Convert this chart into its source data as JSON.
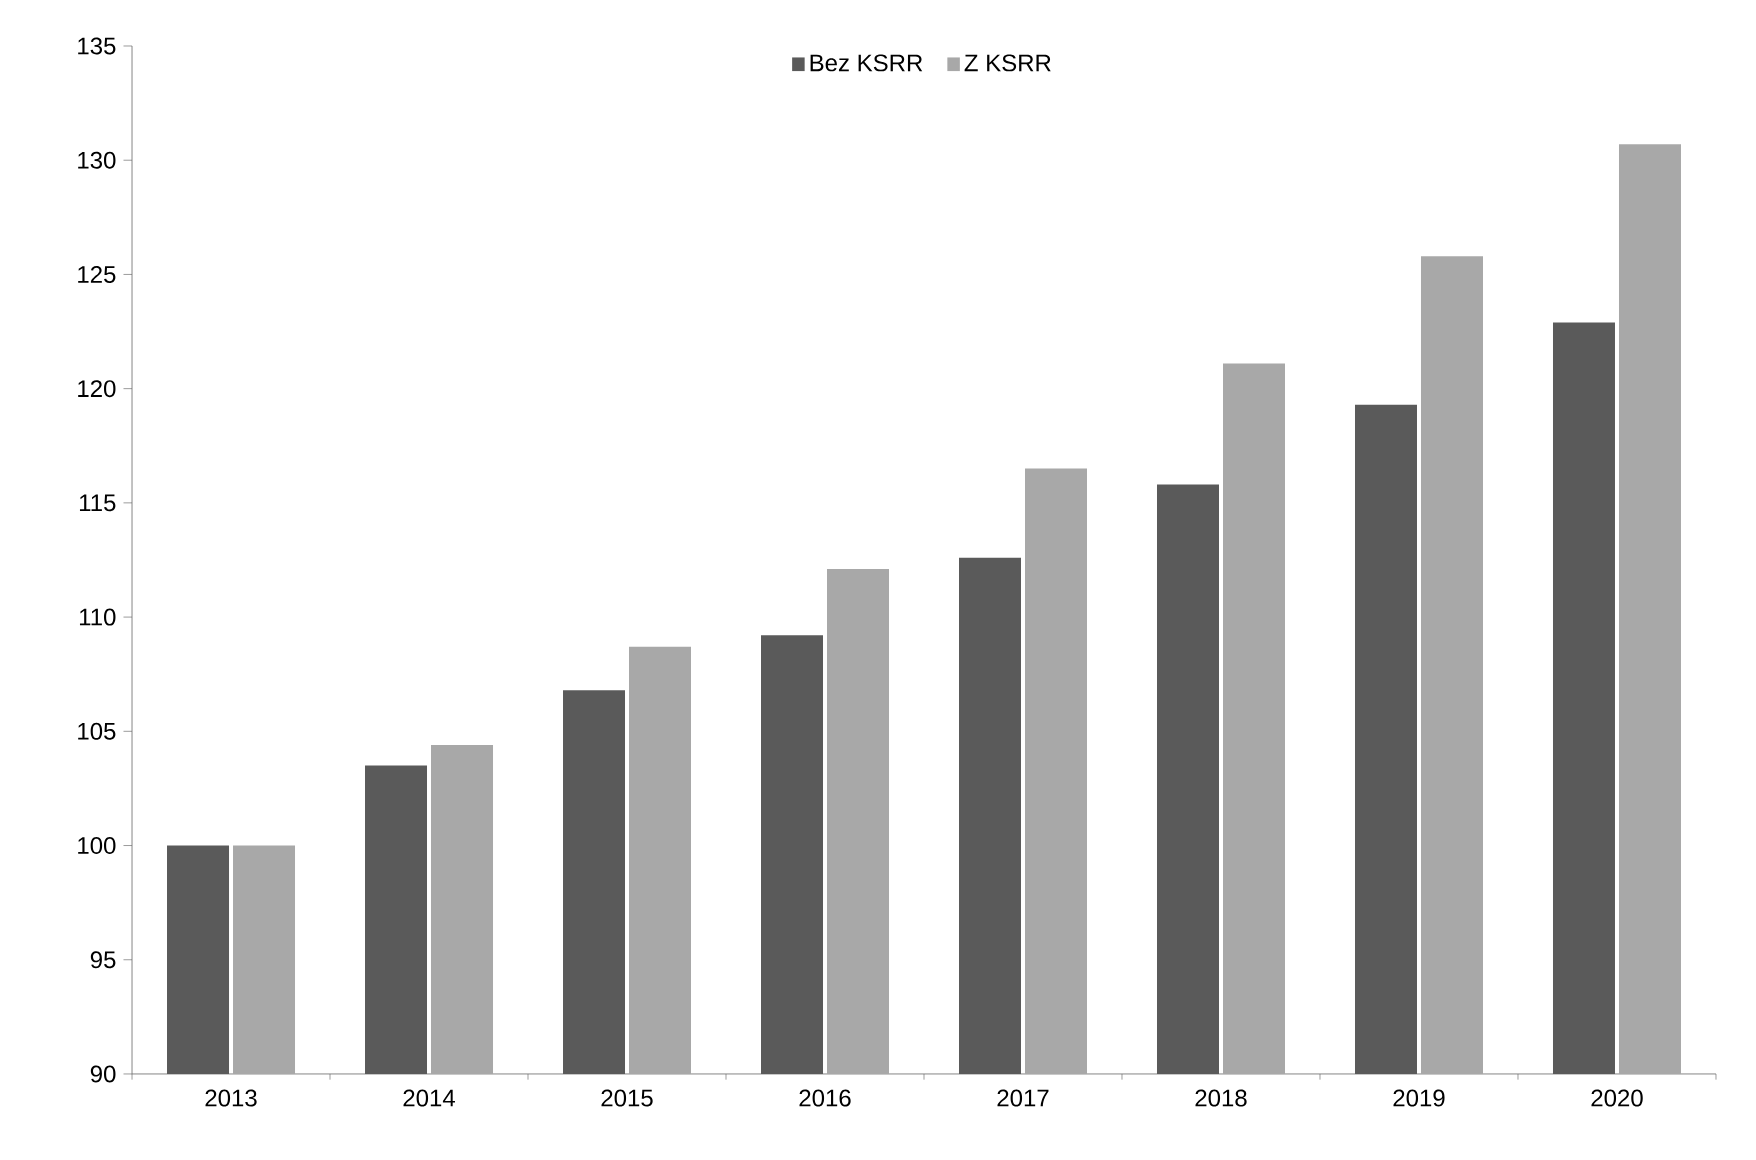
{
  "chart_data": {
    "type": "bar",
    "categories": [
      "2013",
      "2014",
      "2015",
      "2016",
      "2017",
      "2018",
      "2019",
      "2020"
    ],
    "series": [
      {
        "name": "Bez KSRR",
        "color": "#5a5a5a",
        "values": [
          100,
          103.5,
          106.8,
          109.2,
          112.6,
          115.8,
          119.3,
          122.9
        ]
      },
      {
        "name": "Z KSRR",
        "color": "#a8a8a8",
        "values": [
          100,
          104.4,
          108.7,
          112.1,
          116.5,
          121.1,
          125.8,
          130.7
        ]
      }
    ],
    "ylim": [
      90,
      135
    ],
    "yticks": [
      90,
      95,
      100,
      105,
      110,
      115,
      120,
      125,
      130,
      135
    ],
    "grid": false,
    "legend": "top"
  }
}
